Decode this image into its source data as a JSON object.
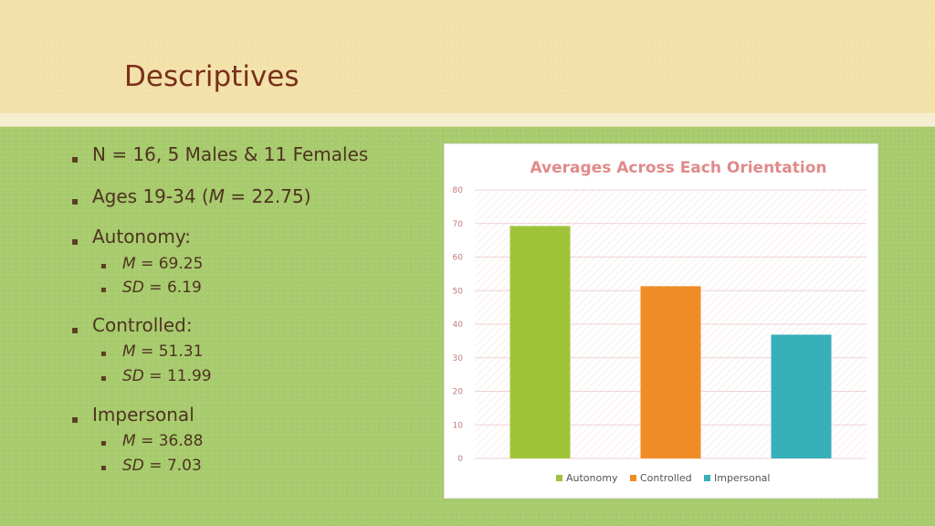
{
  "slide": {
    "title": "Descriptives",
    "bullets": [
      {
        "text": "N = 16, 5 Males & 11 Females"
      },
      {
        "pre": "Ages 19-34 (",
        "it": "M",
        "post": " = 22.75)"
      },
      {
        "text": "Autonomy:"
      },
      {
        "text": "Controlled:"
      },
      {
        "text": "Impersonal"
      }
    ],
    "stats": [
      {
        "it": "M",
        "post": " = 69.25"
      },
      {
        "it": "SD",
        "post": " = 6.19"
      },
      {
        "it": "M",
        "post": " = 51.31"
      },
      {
        "it": "SD",
        "post": " = 11.99"
      },
      {
        "it": "M",
        "post": " = 36.88"
      },
      {
        "it": "SD",
        "post": " = 7.03"
      }
    ],
    "bullet_marker": "▪"
  },
  "colors": {
    "title": "#7a2f1b",
    "chart_title": "#e08a8a",
    "axis_text": "#c27b7b",
    "autonomy": "#9fc43a",
    "controlled": "#f08c25",
    "impersonal": "#37b0ba"
  },
  "chart_data": {
    "type": "bar",
    "title": "Averages Across Each Orientation",
    "categories": [
      "Autonomy",
      "Controlled",
      "Impersonal"
    ],
    "values": [
      69.25,
      51.31,
      36.88
    ],
    "colors": [
      "#9fc43a",
      "#f08c25",
      "#37b0ba"
    ],
    "ylim": [
      0,
      80
    ],
    "yticks": [
      0,
      10,
      20,
      30,
      40,
      50,
      60,
      70,
      80
    ],
    "legend": [
      "Autonomy",
      "Controlled",
      "Impersonal"
    ],
    "legend_position": "bottom",
    "grid": true
  }
}
